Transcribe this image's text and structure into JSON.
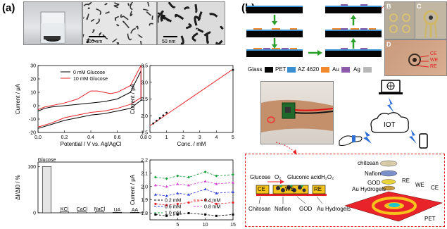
{
  "panel_a": {
    "label": "(a)",
    "scale_bars": [
      "300 nm",
      "50 nm"
    ],
    "cv": {
      "ylabel": "Current / μA",
      "xlabel": "Potential / V vs. Ag/AgCl",
      "xticks": [
        "0.0",
        "0.2",
        "0.4",
        "0.6",
        "0.8"
      ],
      "yticks": [
        "30",
        "20",
        "10",
        "0",
        "-10",
        "-20"
      ],
      "legend": [
        "0 mM Glucose",
        "10 mM Glucose"
      ],
      "colors": [
        "#000000",
        "#e8242a"
      ]
    },
    "cal": {
      "ylabel": "Current / μA",
      "xlabel": "Conc. / mM",
      "xticks": [
        "0",
        "1",
        "2",
        "3",
        "4",
        "5"
      ],
      "yticks": [
        "3.5",
        "3.0",
        "2.5",
        "2.0",
        "1.5"
      ]
    },
    "sel": {
      "ylabel": "ΔI/ΔI0 / %",
      "yticks": [
        "100",
        "0"
      ],
      "categories": [
        "Glucose",
        "KCl",
        "CaCl2",
        "NaCl",
        "UA",
        "AA"
      ],
      "cat_labels": [
        "KCl",
        "CaCl",
        "NaCl",
        "UA",
        "AA"
      ],
      "top_label": "Glucose"
    },
    "stab": {
      "ylabel": "Current / μA",
      "xlabel": "Time / day",
      "xticks": [
        "5",
        "10",
        "15"
      ],
      "yticks": [
        "2.2",
        "2.1",
        "2.0",
        "1.9",
        "1.8"
      ],
      "legend": [
        "0.2 mM",
        "0.4 mM",
        "0.6 mM",
        "0.8 mM",
        "1.0 mM"
      ]
    }
  },
  "panel_b": {
    "label": "(b)",
    "legend": [
      "Glass",
      "PET",
      "AZ 4620",
      "Au",
      "Ag"
    ],
    "legend_colors": [
      "#050505",
      "#3a8fd0",
      "#f08a2c",
      "#8b5aa8",
      "#b8b8b8"
    ],
    "photo_letters": [
      "B",
      "C",
      "D"
    ],
    "electrode_labels": [
      "CE",
      "WE",
      "RE"
    ],
    "iot": "IOT",
    "schematic": {
      "left_top": [
        "Glucose",
        "O₂",
        "Gluconic acid",
        "H₂O₂"
      ],
      "left_boxes": [
        "CE",
        "WE",
        "RE"
      ],
      "left_bottom": [
        "Chitosan",
        "Nafion",
        "GOD",
        "Au Hydrogels"
      ],
      "right_layers": [
        "chitosan",
        "Nafion",
        "GOD",
        "Au Hydrogels"
      ],
      "right_labels": [
        "RE",
        "WE",
        "CE",
        "PET"
      ]
    }
  },
  "chart_data": [
    {
      "type": "line",
      "title": "",
      "xlabel": "Potential / V vs. Ag/AgCl",
      "ylabel": "Current / μA",
      "xlim": [
        0.0,
        0.8
      ],
      "ylim": [
        -20,
        30
      ],
      "series": [
        {
          "name": "0 mM Glucose",
          "forward": [
            [
              0.0,
              -4
            ],
            [
              0.05,
              -2
            ],
            [
              0.1,
              -1
            ],
            [
              0.2,
              0
            ],
            [
              0.3,
              1
            ],
            [
              0.4,
              2
            ],
            [
              0.5,
              3
            ],
            [
              0.6,
              5
            ],
            [
              0.7,
              10
            ],
            [
              0.78,
              26
            ]
          ],
          "reverse": [
            [
              0.78,
              4
            ],
            [
              0.7,
              -2
            ],
            [
              0.6,
              -4
            ],
            [
              0.5,
              -6
            ],
            [
              0.4,
              -7
            ],
            [
              0.3,
              -9
            ],
            [
              0.2,
              -11
            ],
            [
              0.1,
              -14
            ],
            [
              0.0,
              -17
            ]
          ]
        },
        {
          "name": "10 mM Glucose",
          "forward": [
            [
              0.0,
              -3
            ],
            [
              0.05,
              -1
            ],
            [
              0.1,
              0
            ],
            [
              0.2,
              2
            ],
            [
              0.3,
              5
            ],
            [
              0.35,
              8
            ],
            [
              0.4,
              11
            ],
            [
              0.45,
              11
            ],
            [
              0.5,
              10
            ],
            [
              0.55,
              9
            ],
            [
              0.6,
              10
            ],
            [
              0.7,
              15
            ],
            [
              0.78,
              30
            ]
          ],
          "reverse": [
            [
              0.78,
              6
            ],
            [
              0.7,
              1
            ],
            [
              0.6,
              -2
            ],
            [
              0.5,
              -4
            ],
            [
              0.4,
              -5
            ],
            [
              0.3,
              -7
            ],
            [
              0.2,
              -9
            ],
            [
              0.1,
              -13
            ],
            [
              0.0,
              -16
            ]
          ]
        }
      ]
    },
    {
      "type": "scatter",
      "title": "",
      "xlabel": "Conc. / mM",
      "ylabel": "Current / μA",
      "xlim": [
        0,
        5
      ],
      "ylim": [
        1.5,
        3.5
      ],
      "x": [
        0.2,
        0.4,
        0.6,
        0.8,
        1.0,
        5.0
      ],
      "y": [
        1.77,
        1.85,
        1.93,
        2.01,
        2.09,
        3.37
      ],
      "fit": [
        [
          0.0,
          1.7
        ],
        [
          5.0,
          3.39
        ]
      ]
    },
    {
      "type": "bar",
      "title": "",
      "ylabel": "ΔI/ΔI0 / %",
      "categories": [
        "Glucose",
        "KCl",
        "CaCl2",
        "NaCl",
        "UA",
        "AA"
      ],
      "values": [
        100,
        2,
        2,
        2,
        1,
        1
      ],
      "ylim": [
        0,
        110
      ]
    },
    {
      "type": "line",
      "title": "",
      "xlabel": "Time / day",
      "ylabel": "Current / μA",
      "xlim": [
        0,
        15
      ],
      "ylim": [
        1.75,
        2.2
      ],
      "x": [
        1,
        3,
        5,
        7,
        10,
        12,
        15
      ],
      "series": [
        {
          "name": "0.2 mM",
          "color": "#000000",
          "values": [
            1.79,
            1.78,
            1.79,
            1.8,
            1.79,
            1.78,
            1.79
          ]
        },
        {
          "name": "0.4 mM",
          "color": "#e8242a",
          "values": [
            1.87,
            1.86,
            1.87,
            1.88,
            1.9,
            1.87,
            1.88
          ]
        },
        {
          "name": "0.6 mM",
          "color": "#2a3bd8",
          "values": [
            1.94,
            1.93,
            1.95,
            1.94,
            1.98,
            1.95,
            1.96
          ]
        },
        {
          "name": "0.8 mM",
          "color": "#d63bd0",
          "values": [
            2.01,
            2.0,
            2.02,
            2.01,
            2.04,
            2.02,
            2.03
          ]
        },
        {
          "name": "1.0 mM",
          "color": "#17a037",
          "values": [
            2.07,
            2.06,
            2.08,
            2.07,
            2.11,
            2.08,
            2.09
          ]
        }
      ]
    }
  ]
}
